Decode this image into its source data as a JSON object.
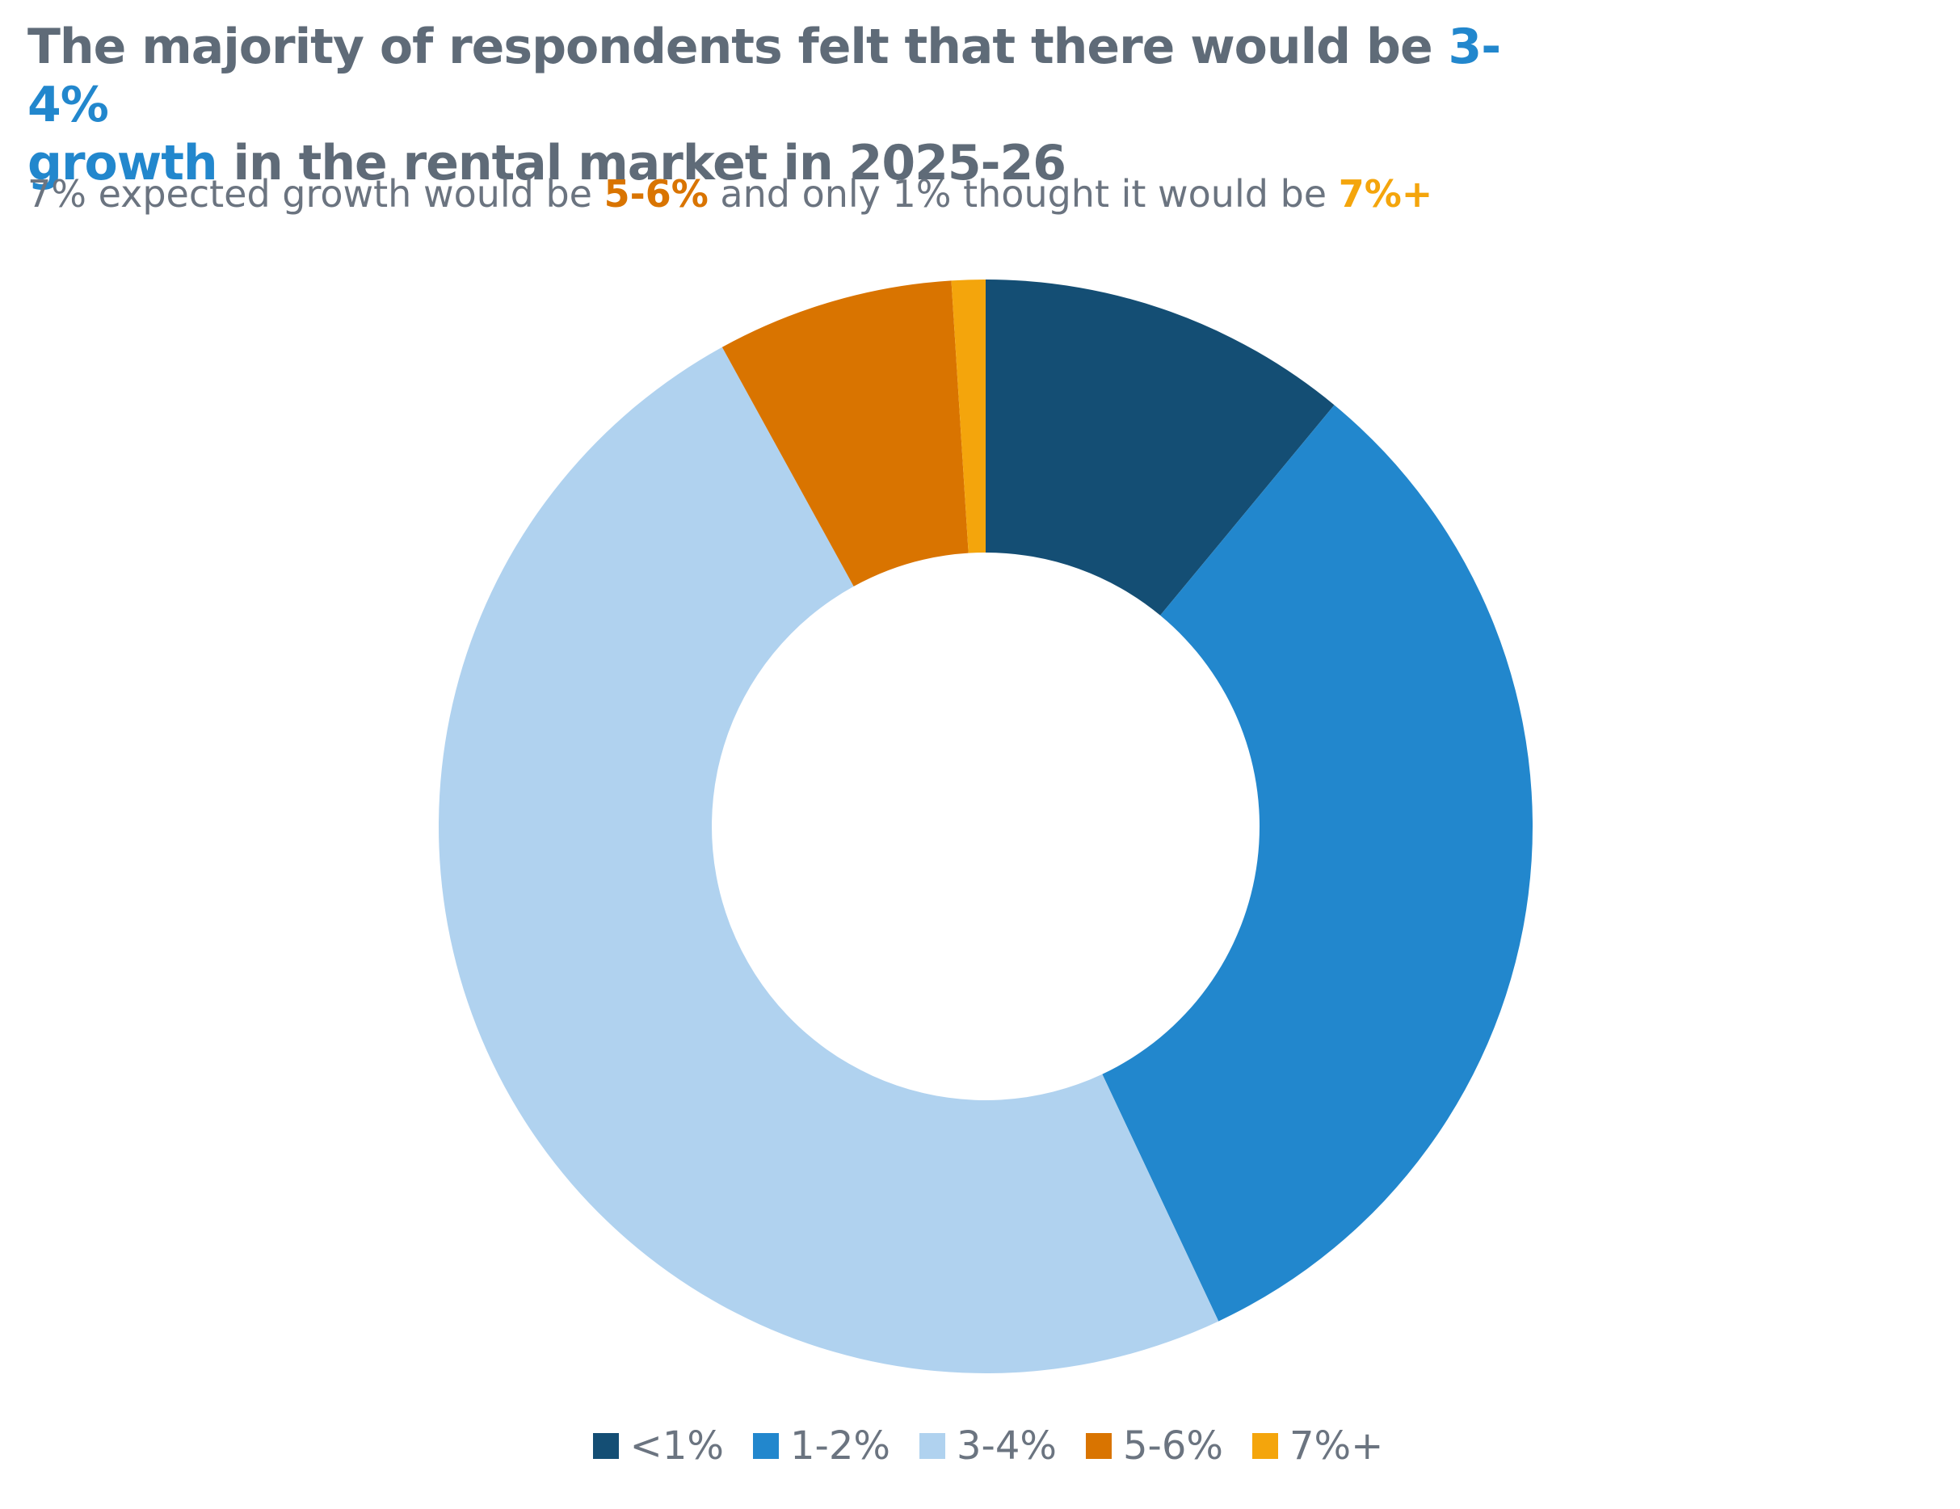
{
  "header": {
    "title_part1": "The majority of respondents felt that there would be ",
    "title_highlight1": "3-4%",
    "title_highlight2": "growth",
    "title_part2": " in the rental market in 2025-26",
    "subtitle_part1": "7% expected growth would be ",
    "subtitle_highlight1": "5-6%",
    "subtitle_part2": " and only 1% thought it would be ",
    "subtitle_highlight2": "7%+"
  },
  "colors": {
    "title_text": "#5f6b78",
    "highlight_blue": "#2287cd",
    "highlight_orange": "#d97400",
    "highlight_yellow": "#f4a50c"
  },
  "chart_data": {
    "type": "pie",
    "donut": true,
    "categories": [
      "<1%",
      "1-2%",
      "3-4%",
      "5-6%",
      "7%+"
    ],
    "values": [
      11,
      32,
      49,
      7,
      1
    ],
    "colors": [
      "#144e74",
      "#2287cd",
      "#b0d2ef",
      "#d97400",
      "#f4a50c"
    ],
    "legend_position": "bottom"
  }
}
